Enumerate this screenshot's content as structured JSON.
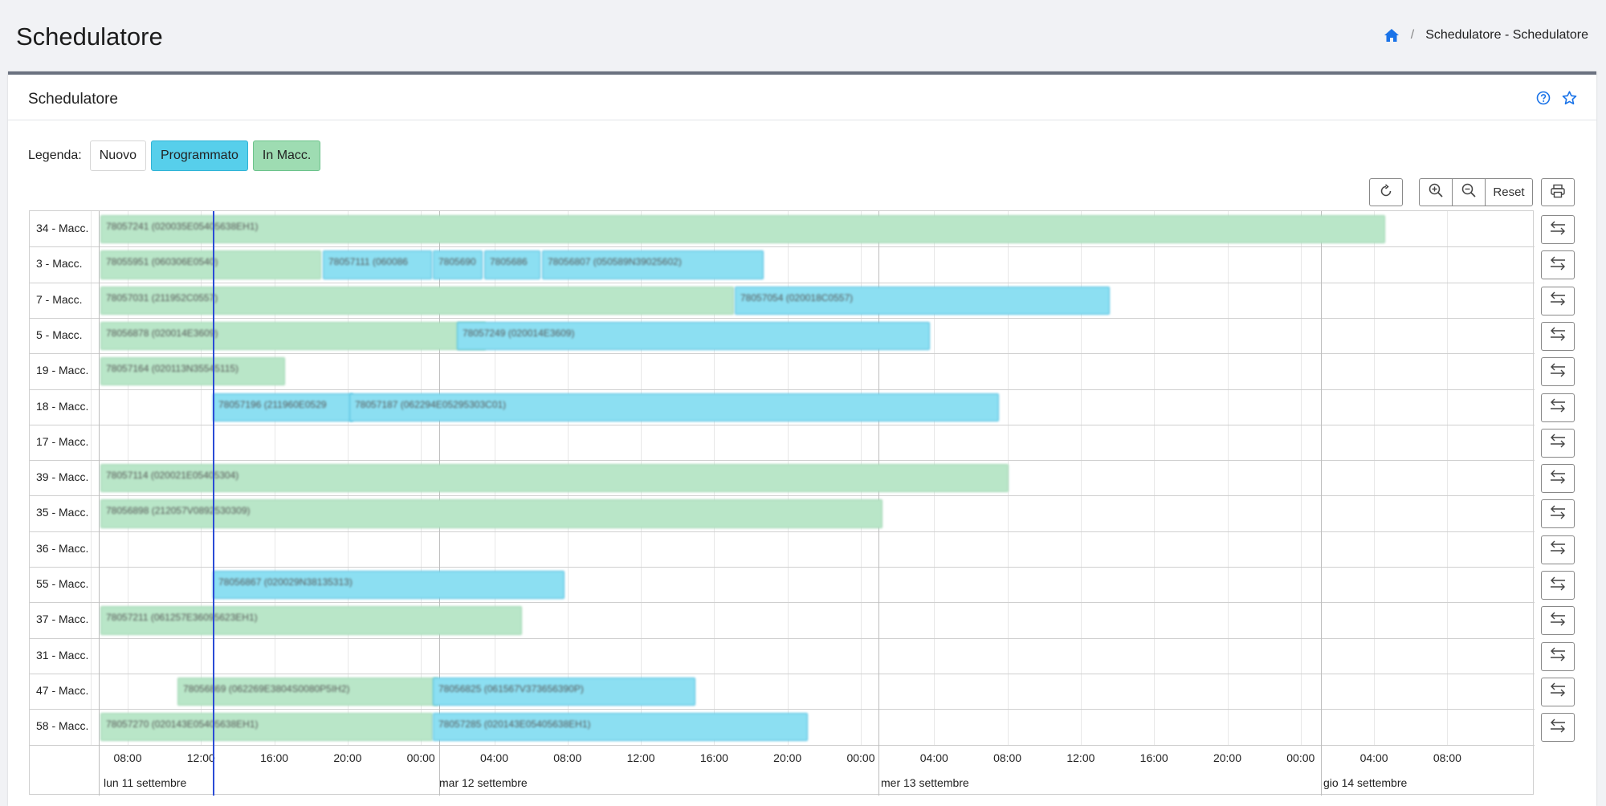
{
  "header": {
    "title": "Schedulatore",
    "breadcrumb": "Schedulatore - Schedulatore"
  },
  "card": {
    "title": "Schedulatore"
  },
  "legend": {
    "label": "Legenda:",
    "items": [
      "Nuovo",
      "Programmato",
      "In Macc."
    ]
  },
  "toolbar": {
    "reset_label": "Reset"
  },
  "colors": {
    "in_macc": "#b9e6c8",
    "programmato": "#8cdff2",
    "nuovo": "#ffffff",
    "now_line": "#2b4cd6",
    "accent": "#1a73e8"
  },
  "time_axis": {
    "ticks": [
      "08:00",
      "12:00",
      "16:00",
      "20:00",
      "00:00",
      "04:00",
      "08:00",
      "12:00",
      "16:00",
      "20:00",
      "00:00",
      "04:00",
      "08:00",
      "12:00",
      "16:00",
      "20:00",
      "00:00",
      "04:00",
      "08:00"
    ],
    "days": [
      "lun 11 settembre",
      "mar 12 settembre",
      "mer 13 settembre",
      "gio 14 settembre"
    ]
  },
  "rows": [
    {
      "label": "34 - Macc.",
      "tasks": [
        {
          "text": "78057241 (020035E05405638EH1)",
          "status": "mac"
        }
      ]
    },
    {
      "label": "3 - Macc.",
      "tasks": [
        {
          "text": "78055951 (060306E0540)",
          "status": "mac"
        },
        {
          "text": "78057111 (060086",
          "status": "prog"
        },
        {
          "text": "7805690",
          "status": "prog"
        },
        {
          "text": "7805686",
          "status": "prog"
        },
        {
          "text": "78056807 (050589N39025602)",
          "status": "prog"
        }
      ]
    },
    {
      "label": "7 - Macc.",
      "tasks": [
        {
          "text": "78057031 (211952C0557)",
          "status": "mac"
        },
        {
          "text": "78057054 (020018C0557)",
          "status": "prog"
        }
      ]
    },
    {
      "label": "5 - Macc.",
      "tasks": [
        {
          "text": "78056878 (020014E3609)",
          "status": "mac"
        },
        {
          "text": "78057249 (020014E3609)",
          "status": "prog"
        }
      ]
    },
    {
      "label": "19 - Macc.",
      "tasks": [
        {
          "text": "78057164 (020113N35545115)",
          "status": "mac"
        }
      ]
    },
    {
      "label": "18 - Macc.",
      "tasks": [
        {
          "text": "78057196 (211960E0529",
          "status": "prog"
        },
        {
          "text": "78057187 (062294E05295303C01)",
          "status": "prog"
        }
      ]
    },
    {
      "label": "17 - Macc.",
      "tasks": []
    },
    {
      "label": "39 - Macc.",
      "tasks": [
        {
          "text": "78057114 (020021E05405304)",
          "status": "mac"
        }
      ]
    },
    {
      "label": "35 - Macc.",
      "tasks": [
        {
          "text": "78056898 (212057V0892530309)",
          "status": "mac"
        }
      ]
    },
    {
      "label": "36 - Macc.",
      "tasks": []
    },
    {
      "label": "55 - Macc.",
      "tasks": [
        {
          "text": "78056867 (020029N38135313)",
          "status": "prog"
        }
      ]
    },
    {
      "label": "37 - Macc.",
      "tasks": [
        {
          "text": "78057211 (061257E36095623EH1)",
          "status": "mac"
        }
      ]
    },
    {
      "label": "31 - Macc.",
      "tasks": []
    },
    {
      "label": "47 - Macc.",
      "tasks": [
        {
          "text": "78056869 (062269E3804S0080P5IH2)",
          "status": "mac"
        },
        {
          "text": "78056825 (061567V373656390P)",
          "status": "prog"
        }
      ]
    },
    {
      "label": "58 - Macc.",
      "tasks": [
        {
          "text": "78057270 (020143E05405638EH1)",
          "status": "mac"
        },
        {
          "text": "78057285 (020143E05405638EH1)",
          "status": "prog"
        }
      ]
    }
  ]
}
